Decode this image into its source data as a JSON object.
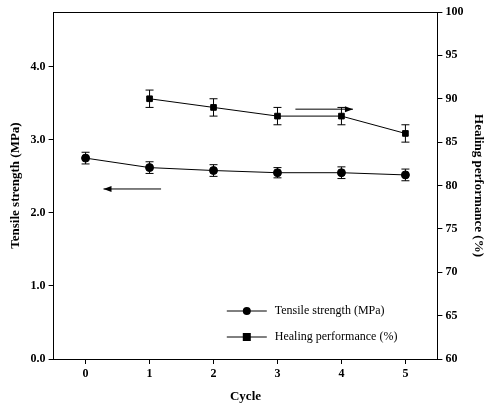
{
  "chart_data": {
    "type": "line",
    "x_label": "Cycle",
    "y_label": "Tensile strength (MPa)",
    "y2_label": "Healing performance (%)",
    "xlim": [
      -0.5,
      5.5
    ],
    "xticks": [
      0,
      1,
      2,
      3,
      4,
      5
    ],
    "ylim": [
      0,
      4.75
    ],
    "yticks": [
      {
        "value": 0,
        "label": "0.0"
      },
      {
        "value": 1,
        "label": "1.0"
      },
      {
        "value": 2,
        "label": "2.0"
      },
      {
        "value": 3,
        "label": "3.0"
      },
      {
        "value": 4,
        "label": "4.0"
      }
    ],
    "y2lim": [
      60,
      100
    ],
    "y2ticks": [
      60,
      65,
      70,
      75,
      80,
      85,
      90,
      95,
      100
    ],
    "grid": false,
    "legend": "lower right",
    "series": [
      {
        "name": "Tensile strength (MPa)",
        "color": "#000000",
        "marker": "circle",
        "line_style": "solid",
        "x": [
          0,
          1,
          2,
          3,
          4,
          5
        ],
        "values": [
          2.75,
          2.62,
          2.58,
          2.55,
          2.55,
          2.52
        ],
        "errors": [
          0.08,
          0.08,
          0.08,
          0.07,
          0.08,
          0.08
        ]
      },
      {
        "name": "Healing performance (%)",
        "color": "#000000",
        "marker": "square",
        "line_style": "solid",
        "axis": "y2",
        "x": [
          1,
          2,
          3,
          4,
          5
        ],
        "values": [
          90,
          89,
          88,
          88,
          86
        ],
        "errors": [
          1,
          1,
          1,
          1,
          1
        ]
      }
    ]
  }
}
